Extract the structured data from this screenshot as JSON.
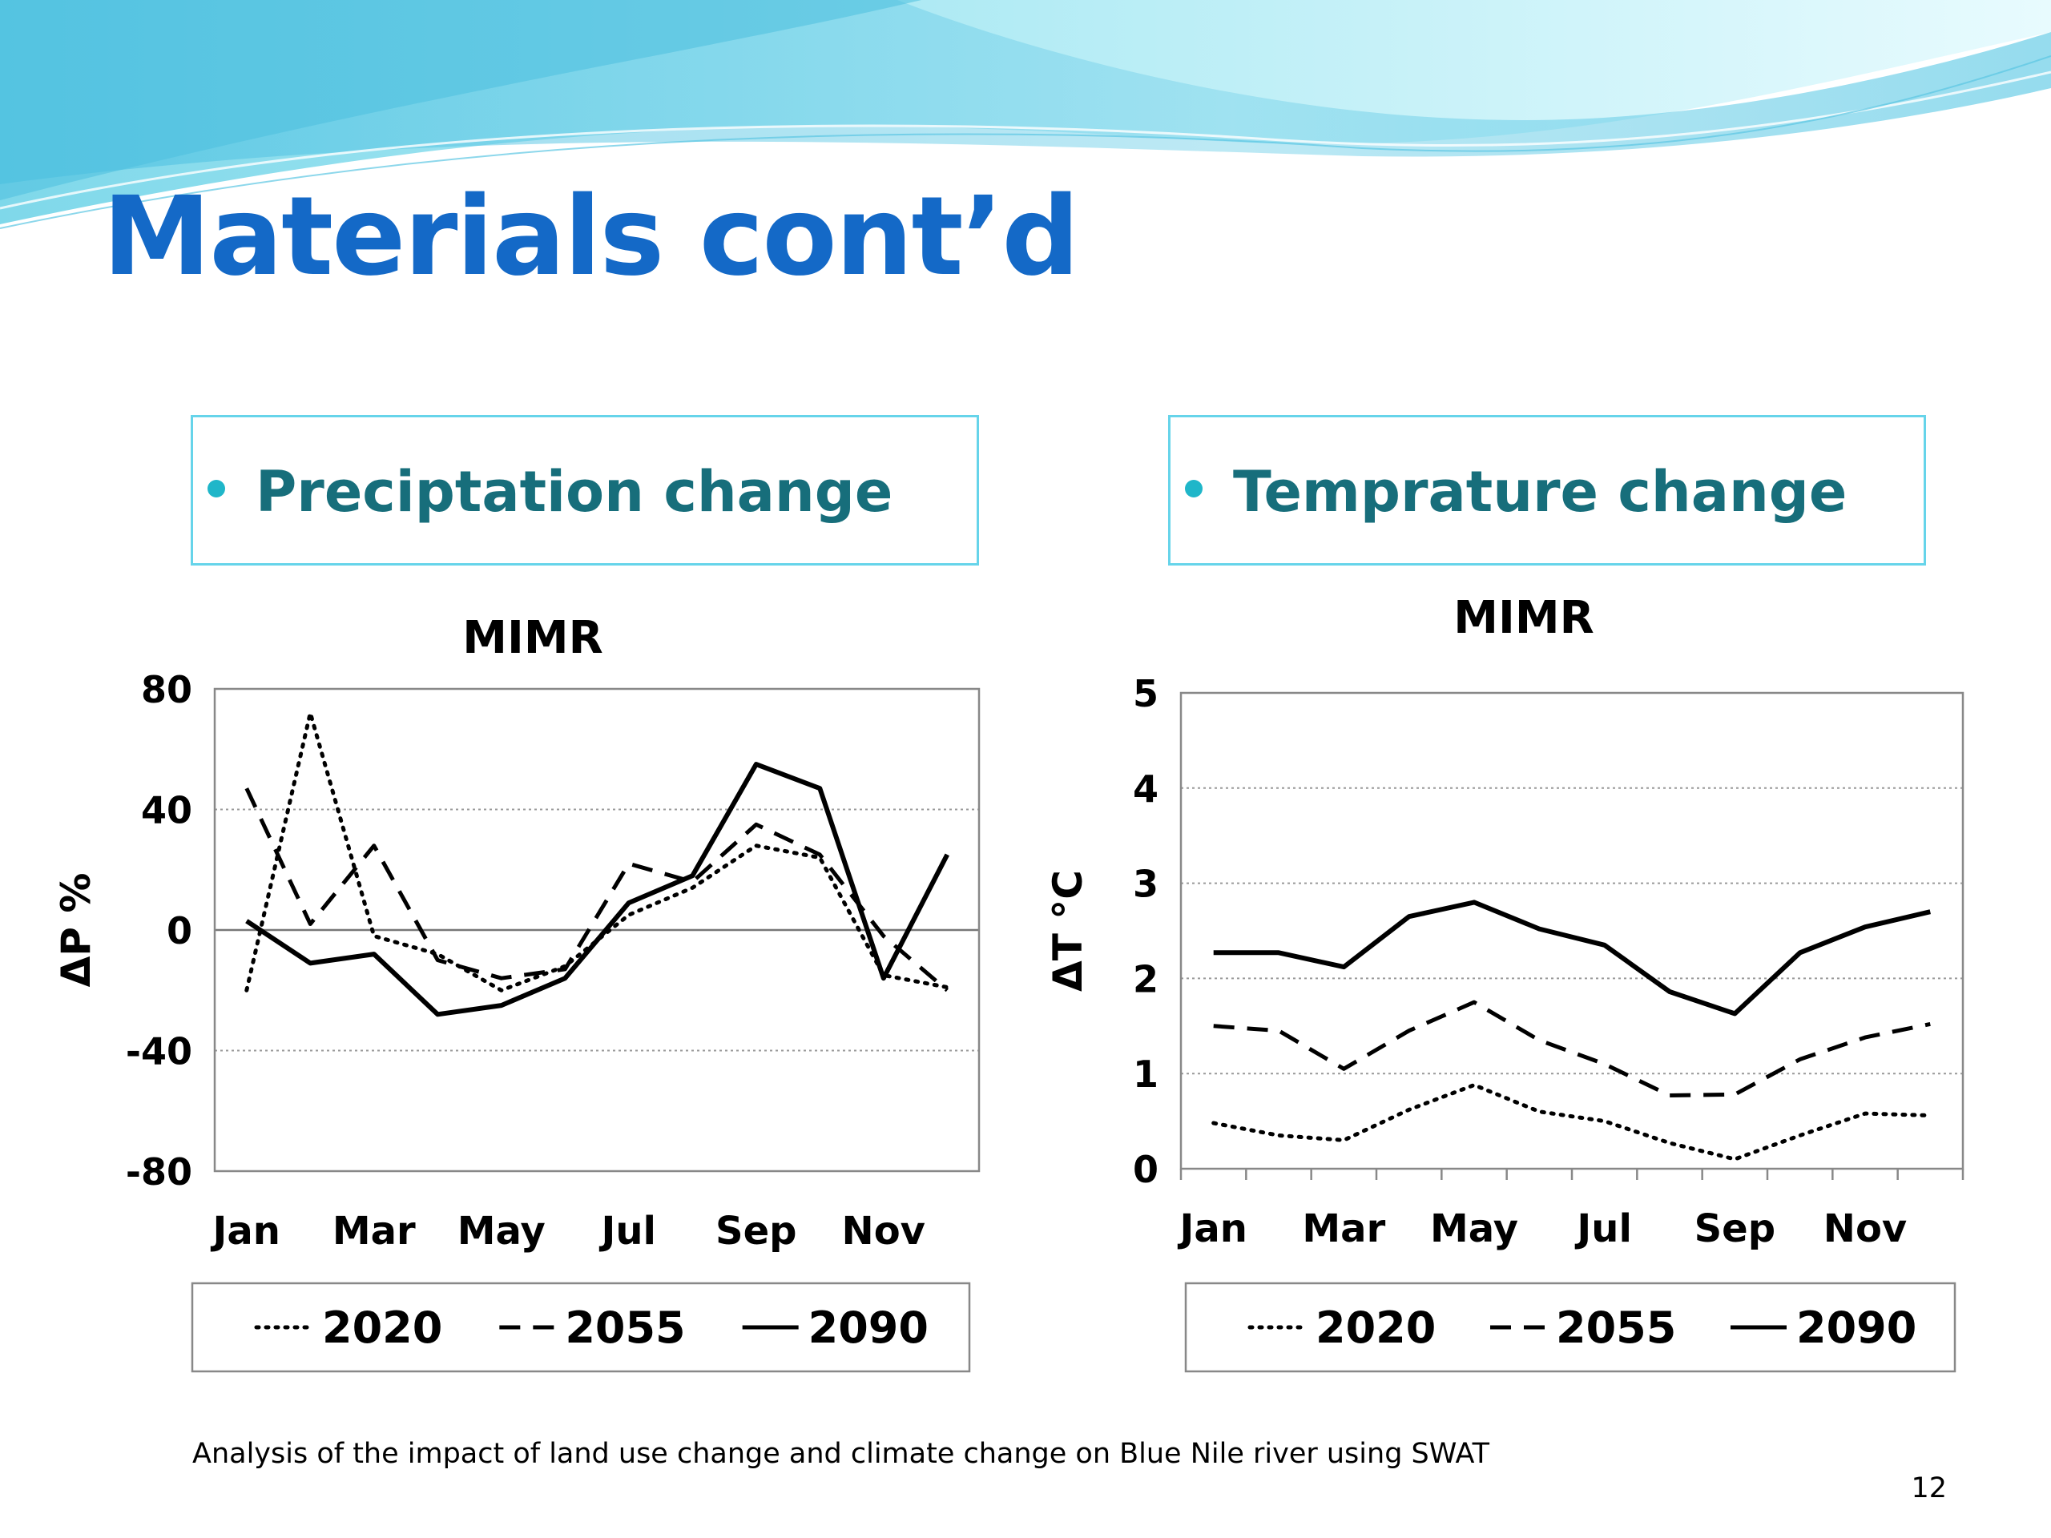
{
  "slide": {
    "title": "Materials cont’d",
    "caption": "Analysis of the impact of land use change and climate change on Blue Nile river using SWAT",
    "page_number": "12",
    "colors": {
      "title": "#1469c7",
      "bullet_text": "#176e7b",
      "bullet_dot": "#1fb6c9",
      "box_border": "#66d4ea",
      "wave_light": "#9fe3f2",
      "wave_dark": "#4bbfe0"
    }
  },
  "bullets": {
    "left": "Preciptation change",
    "right": "Temprature change"
  },
  "chart_data": [
    {
      "type": "line",
      "title": "MIMR",
      "xlabel": "",
      "ylabel": "ΔP %",
      "ylim": [
        -80,
        80
      ],
      "yticks": [
        80,
        40,
        0,
        -40,
        -80
      ],
      "x": [
        "Jan",
        "Feb",
        "Mar",
        "Apr",
        "May",
        "Jun",
        "Jul",
        "Aug",
        "Sep",
        "Oct",
        "Nov",
        "Dec"
      ],
      "xtick_labels": [
        "Jan",
        "Mar",
        "May",
        "Jul",
        "Sep",
        "Nov"
      ],
      "grid": true,
      "legend": "bottom",
      "series": [
        {
          "name": "2020",
          "style": "dotted",
          "values": [
            -20,
            72,
            -2,
            -8,
            -20,
            -12,
            5,
            14,
            28,
            24,
            -15,
            -19
          ]
        },
        {
          "name": "2055",
          "style": "dashed",
          "values": [
            47,
            2,
            28,
            -10,
            -16,
            -13,
            22,
            16,
            35,
            25,
            -2,
            -20
          ]
        },
        {
          "name": "2090",
          "style": "solid",
          "values": [
            3,
            -11,
            -8,
            -28,
            -25,
            -16,
            9,
            18,
            55,
            47,
            -16,
            25
          ]
        }
      ]
    },
    {
      "type": "line",
      "title": "MIMR",
      "xlabel": "",
      "ylabel": "ΔT °C",
      "ylim": [
        0,
        5
      ],
      "yticks": [
        5,
        4,
        3,
        2,
        1,
        0
      ],
      "x": [
        "Jan",
        "Feb",
        "Mar",
        "Apr",
        "May",
        "Jun",
        "Jul",
        "Aug",
        "Sep",
        "Oct",
        "Nov",
        "Dec"
      ],
      "xtick_labels": [
        "Jan",
        "Mar",
        "May",
        "Jul",
        "Sep",
        "Nov"
      ],
      "grid": true,
      "legend": "bottom",
      "series": [
        {
          "name": "2020",
          "style": "dotted",
          "values": [
            0.48,
            0.35,
            0.3,
            0.62,
            0.88,
            0.6,
            0.5,
            0.27,
            0.1,
            0.35,
            0.58,
            0.56
          ]
        },
        {
          "name": "2055",
          "style": "dashed",
          "values": [
            1.5,
            1.45,
            1.05,
            1.45,
            1.75,
            1.35,
            1.1,
            0.77,
            0.78,
            1.15,
            1.38,
            1.52
          ]
        },
        {
          "name": "2090",
          "style": "solid",
          "values": [
            2.27,
            2.27,
            2.12,
            2.65,
            2.8,
            2.52,
            2.35,
            1.86,
            1.63,
            2.27,
            2.54,
            2.7
          ]
        }
      ]
    }
  ]
}
